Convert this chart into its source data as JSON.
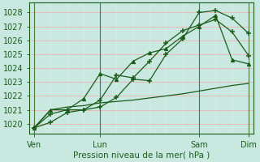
{
  "xlabel": "Pression niveau de la mer( hPa )",
  "bg_color": "#c8e8e0",
  "major_grid_color": "#e8b8b8",
  "minor_grid_color": "#d8eeea",
  "line_color": "#1a5c1a",
  "vline_color": "#4a7a4a",
  "ylim": [
    1019.3,
    1028.7
  ],
  "yticks": [
    1020,
    1021,
    1022,
    1023,
    1024,
    1025,
    1026,
    1027,
    1028
  ],
  "xtick_labels": [
    "Ven",
    "Lun",
    "Sam",
    "Dim"
  ],
  "xtick_positions": [
    0,
    4,
    10,
    13
  ],
  "num_points": 14,
  "line1_x": [
    0,
    1,
    2,
    3,
    4,
    5,
    6,
    7,
    8,
    9,
    10,
    11,
    12,
    13
  ],
  "line1_y": [
    1019.7,
    1020.1,
    1020.8,
    1021.0,
    1021.2,
    1021.9,
    1023.2,
    1023.1,
    1025.0,
    1026.1,
    1028.0,
    1028.15,
    1027.6,
    1026.5
  ],
  "line2_x": [
    0,
    1,
    2,
    3,
    4,
    5,
    6,
    7,
    8,
    9,
    10,
    11,
    12,
    13
  ],
  "line2_y": [
    1019.7,
    1020.7,
    1021.0,
    1021.0,
    1021.7,
    1023.5,
    1023.3,
    1024.5,
    1025.8,
    1026.7,
    1027.1,
    1027.5,
    1026.6,
    1024.9
  ],
  "line3_x": [
    0,
    1,
    2,
    3,
    4,
    5,
    6,
    7,
    8,
    9,
    10,
    11,
    12,
    13
  ],
  "line3_y": [
    1019.7,
    1021.0,
    1021.0,
    1021.8,
    1023.6,
    1023.2,
    1024.5,
    1025.1,
    1025.4,
    1026.3,
    1027.0,
    1027.8,
    1024.6,
    1024.3
  ],
  "line4_x": [
    0,
    1,
    2,
    3,
    4,
    5,
    6,
    7,
    8,
    9,
    10,
    11,
    12,
    13
  ],
  "line4_y": [
    1019.7,
    1021.0,
    1021.2,
    1021.3,
    1021.5,
    1021.6,
    1021.7,
    1021.85,
    1022.0,
    1022.15,
    1022.35,
    1022.55,
    1022.75,
    1022.9
  ]
}
